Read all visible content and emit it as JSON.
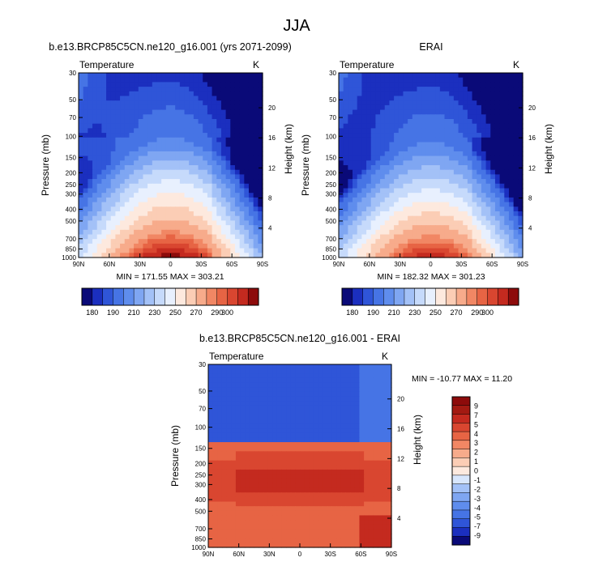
{
  "figure": {
    "title": "JJA"
  },
  "colors": {
    "abs_scale": [
      "#0a0a78",
      "#1b2fbf",
      "#2f55d8",
      "#4674e5",
      "#5f8ded",
      "#7fa6f2",
      "#a3c1f7",
      "#c6dafb",
      "#e8f0fe",
      "#fde9de",
      "#fbcdb5",
      "#f7ab8b",
      "#f18764",
      "#e76444",
      "#d94630",
      "#c42a1f",
      "#8d0b0b"
    ],
    "diff_scale": [
      "#0a0a78",
      "#1b2fbf",
      "#2f55d8",
      "#4674e5",
      "#5f8ded",
      "#7fa6f2",
      "#a3c1f7",
      "#d8e6fc",
      "#fde9de",
      "#fbcdb5",
      "#f7ab8b",
      "#f18764",
      "#e76444",
      "#d94630",
      "#c42a1f",
      "#a31a12",
      "#8d0b0b"
    ]
  },
  "chart_data": [
    {
      "type": "heatmap",
      "title": "b.e13.BRCP85C5CN.ne120_g16.001 (yrs 2071-2099)",
      "variable_label": "Temperature",
      "units_label": "K",
      "ylabel": "Pressure (mb)",
      "ylabel_right": "Height (km)",
      "x_ticks": [
        "90N",
        "60N",
        "30N",
        "0",
        "30S",
        "60S",
        "90S"
      ],
      "y_ticks": [
        "30",
        "50",
        "70",
        "100",
        "150",
        "200",
        "250",
        "300",
        "400",
        "500",
        "700",
        "850",
        "1000"
      ],
      "y_ticks_right": [
        "20",
        "16",
        "12",
        "8",
        "4"
      ],
      "stats": "MIN = 171.55  MAX = 303.21",
      "min": 171.55,
      "max": 303.21,
      "colorbar_labels": [
        "180",
        "190",
        "210",
        "230",
        "250",
        "270",
        "290",
        "300"
      ],
      "levels": [
        180,
        185,
        190,
        200,
        210,
        220,
        230,
        240,
        250,
        260,
        270,
        280,
        285,
        290,
        295,
        300
      ]
    },
    {
      "type": "heatmap",
      "title": "ERAI",
      "variable_label": "Temperature",
      "units_label": "K",
      "ylabel": "Pressure (mb)",
      "ylabel_right": "Height (km)",
      "x_ticks": [
        "90N",
        "60N",
        "30N",
        "0",
        "30S",
        "60S",
        "90S"
      ],
      "y_ticks": [
        "30",
        "50",
        "70",
        "100",
        "150",
        "200",
        "250",
        "300",
        "400",
        "500",
        "700",
        "850",
        "1000"
      ],
      "y_ticks_right": [
        "20",
        "16",
        "12",
        "8",
        "4"
      ],
      "stats": "MIN = 182.32  MAX = 301.23",
      "min": 182.32,
      "max": 301.23,
      "colorbar_labels": [
        "180",
        "190",
        "210",
        "230",
        "250",
        "270",
        "290",
        "300"
      ],
      "levels": [
        180,
        185,
        190,
        200,
        210,
        220,
        230,
        240,
        250,
        260,
        270,
        280,
        285,
        290,
        295,
        300
      ]
    },
    {
      "type": "heatmap",
      "title": "b.e13.BRCP85C5CN.ne120_g16.001 - ERAI",
      "variable_label": "Temperature",
      "units_label": "K",
      "ylabel": "Pressure (mb)",
      "ylabel_right": "Height (km)",
      "x_ticks": [
        "90N",
        "60N",
        "30N",
        "0",
        "30S",
        "60S",
        "90S"
      ],
      "y_ticks": [
        "30",
        "50",
        "70",
        "100",
        "150",
        "200",
        "250",
        "300",
        "400",
        "500",
        "700",
        "850",
        "1000"
      ],
      "y_ticks_right": [
        "20",
        "16",
        "12",
        "8",
        "4"
      ],
      "stats": "MIN = -10.77  MAX =  11.20",
      "min": -10.77,
      "max": 11.2,
      "colorbar_labels": [
        "9",
        "7",
        "5",
        "4",
        "3",
        "2",
        "1",
        "0",
        "-1",
        "-2",
        "-3",
        "-4",
        "-5",
        "-7",
        "-9"
      ],
      "levels": [
        -9,
        -7,
        -5,
        -4,
        -3,
        -2,
        -1,
        0,
        1,
        2,
        3,
        4,
        5,
        7,
        9
      ]
    }
  ]
}
